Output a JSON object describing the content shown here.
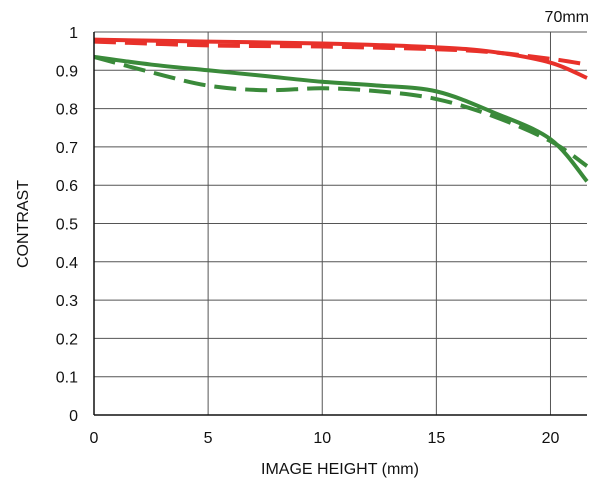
{
  "chart_data": {
    "type": "line",
    "title": "70mm",
    "xlabel": "IMAGE HEIGHT (mm)",
    "ylabel": "CONTRAST",
    "xlim": [
      0,
      21.6
    ],
    "ylim": [
      0,
      1
    ],
    "xticks": [
      0,
      5,
      10,
      15,
      20
    ],
    "xtick_labels": [
      "0",
      "5",
      "10",
      "15",
      "20"
    ],
    "yticks": [
      0,
      0.1,
      0.2,
      0.3,
      0.4,
      0.5,
      0.6,
      0.7,
      0.8,
      0.9,
      1
    ],
    "ytick_labels": [
      "0",
      "0.1",
      "0.2",
      "0.3",
      "0.4",
      "0.5",
      "0.6",
      "0.7",
      "0.8",
      "0.9",
      "1"
    ],
    "grid": true,
    "legend": "none",
    "series": [
      {
        "color": "#e8312a",
        "dash": "solid",
        "x": [
          0,
          5,
          10,
          15,
          17.5,
          20,
          21.6
        ],
        "y": [
          0.98,
          0.975,
          0.97,
          0.96,
          0.948,
          0.92,
          0.88
        ]
      },
      {
        "color": "#e8312a",
        "dash": "dashed",
        "x": [
          0,
          5,
          10,
          15,
          17.5,
          20,
          21.6
        ],
        "y": [
          0.975,
          0.965,
          0.962,
          0.955,
          0.947,
          0.93,
          0.915
        ]
      },
      {
        "color": "#3a8a3a",
        "dash": "solid",
        "x": [
          0,
          2.5,
          5,
          7.5,
          10,
          12.5,
          15,
          17.5,
          20,
          21.6
        ],
        "y": [
          0.935,
          0.915,
          0.9,
          0.885,
          0.87,
          0.86,
          0.845,
          0.79,
          0.72,
          0.61
        ]
      },
      {
        "color": "#3a8a3a",
        "dash": "dashed",
        "x": [
          0,
          2.5,
          5,
          7.5,
          10,
          12.5,
          15,
          17.5,
          20,
          21.6
        ],
        "y": [
          0.935,
          0.895,
          0.86,
          0.848,
          0.853,
          0.845,
          0.825,
          0.78,
          0.715,
          0.65
        ]
      }
    ]
  }
}
